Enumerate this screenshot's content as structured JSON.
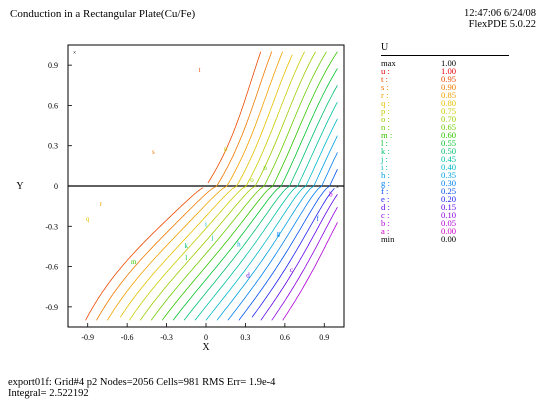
{
  "header": {
    "title": "Conduction in a Rectangular Plate(Cu/Fe)",
    "time_date": "12:47:06 6/24/08",
    "version": "FlexPDE 5.0.22"
  },
  "footer": {
    "line1": "export01f:  Grid#4  p2  Nodes=2056 Cells=981 RMS Err= 1.9e-4",
    "line2": "Integral=  2.522192"
  },
  "legend": {
    "title": "U",
    "entries": [
      {
        "label": "max",
        "value": "1.00",
        "color": "#000000"
      },
      {
        "label": "u :",
        "value": "1.00",
        "color": "#e8000b"
      },
      {
        "label": "t :",
        "value": "0.95",
        "color": "#ec4a00"
      },
      {
        "label": "s :",
        "value": "0.90",
        "color": "#ee7a00"
      },
      {
        "label": "r :",
        "value": "0.85",
        "color": "#f2a000"
      },
      {
        "label": "q :",
        "value": "0.80",
        "color": "#e6c000"
      },
      {
        "label": "p :",
        "value": "0.75",
        "color": "#c8cc00"
      },
      {
        "label": "o :",
        "value": "0.70",
        "color": "#9ccc00"
      },
      {
        "label": "n :",
        "value": "0.65",
        "color": "#6ccc00"
      },
      {
        "label": "m :",
        "value": "0.60",
        "color": "#30c400"
      },
      {
        "label": "l :",
        "value": "0.55",
        "color": "#00c230"
      },
      {
        "label": "k :",
        "value": "0.50",
        "color": "#00c070"
      },
      {
        "label": "j :",
        "value": "0.45",
        "color": "#00c0a0"
      },
      {
        "label": "i :",
        "value": "0.40",
        "color": "#00b8c8"
      },
      {
        "label": "h :",
        "value": "0.35",
        "color": "#00a0e0"
      },
      {
        "label": "g :",
        "value": "0.30",
        "color": "#0080f0"
      },
      {
        "label": "f :",
        "value": "0.25",
        "color": "#0050f0"
      },
      {
        "label": "e :",
        "value": "0.20",
        "color": "#2020f0"
      },
      {
        "label": "d :",
        "value": "0.15",
        "color": "#6000e8"
      },
      {
        "label": "c :",
        "value": "0.10",
        "color": "#8c00e0"
      },
      {
        "label": "b :",
        "value": "0.05",
        "color": "#b000d8"
      },
      {
        "label": "a :",
        "value": "0.00",
        "color": "#d000c8"
      },
      {
        "label": "min",
        "value": "0.00",
        "color": "#000000"
      }
    ]
  },
  "chart_data": {
    "type": "contour",
    "xlabel": "X",
    "ylabel": "Y",
    "xlim": [
      -1.05,
      1.05
    ],
    "ylim": [
      -1.05,
      1.05
    ],
    "xticks": [
      "-0.9",
      "-0.6",
      "-0.3",
      "0",
      "0.3",
      "0.6",
      "0.9"
    ],
    "yticks": [
      "0.9",
      "0.6",
      "0.3",
      "0",
      "-0.3",
      "-0.6",
      "-0.9"
    ],
    "tick_values": [
      -0.9,
      -0.6,
      -0.3,
      0,
      0.3,
      0.6,
      0.9
    ],
    "material_interface_y": 0,
    "contour_levels": [
      0.95,
      0.9,
      0.85,
      0.8,
      0.75,
      0.7,
      0.65,
      0.6,
      0.55,
      0.5,
      0.45,
      0.4,
      0.35,
      0.3,
      0.25,
      0.2,
      0.15,
      0.1,
      0.05
    ],
    "contour_labels": [
      "t",
      "s",
      "r",
      "q",
      "p",
      "o",
      "n",
      "m",
      "l",
      "k",
      "j",
      "i",
      "h",
      "g",
      "f",
      "e",
      "d",
      "c",
      "b"
    ],
    "label_points": [
      {
        "label": "t",
        "x": -0.05,
        "y": 0.85
      },
      {
        "label": "s",
        "x": -0.4,
        "y": 0.24
      },
      {
        "label": "r",
        "x": -0.8,
        "y": -0.15
      },
      {
        "label": "q",
        "x": -0.9,
        "y": -0.26
      },
      {
        "label": "p",
        "x": 0.15,
        "y": 0.26
      },
      {
        "label": "o",
        "x": 0.35,
        "y": 0.03
      },
      {
        "label": "n",
        "x": 0.45,
        "y": 0.12
      },
      {
        "label": "m",
        "x": -0.55,
        "y": -0.58
      },
      {
        "label": "l",
        "x": -0.15,
        "y": -0.55
      },
      {
        "label": "k",
        "x": -0.15,
        "y": -0.46
      },
      {
        "label": "j",
        "x": 0.05,
        "y": -0.4
      },
      {
        "label": "i",
        "x": 0.0,
        "y": -0.3
      },
      {
        "label": "h",
        "x": 0.25,
        "y": -0.45
      },
      {
        "label": "g",
        "x": 0.55,
        "y": -0.37
      },
      {
        "label": "f",
        "x": 0.85,
        "y": -0.26
      },
      {
        "label": "d",
        "x": 0.32,
        "y": -0.68
      },
      {
        "label": "c",
        "x": 0.65,
        "y": -0.64
      },
      {
        "label": "b",
        "x": 0.95,
        "y": -0.08
      }
    ]
  }
}
